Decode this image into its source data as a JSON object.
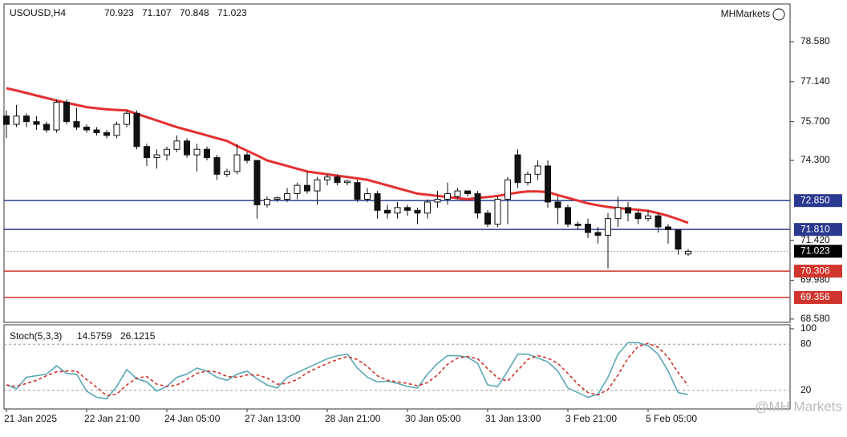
{
  "chart_data": {
    "type": "candlestick",
    "symbol": "USOUSD,H4",
    "quote": [
      70.923,
      71.107,
      70.848,
      71.023
    ],
    "brand": "MHMarkets",
    "watermark": "@MH Markets",
    "categories": [
      "21 Jan 2025",
      null,
      null,
      null,
      null,
      null,
      null,
      null,
      "22 Jan 21:00",
      null,
      null,
      null,
      null,
      null,
      null,
      null,
      "24 Jan 05:00",
      null,
      null,
      null,
      null,
      null,
      null,
      null,
      "27 Jan 13:00",
      null,
      null,
      null,
      null,
      null,
      null,
      null,
      "28 Jan 21:00",
      null,
      null,
      null,
      null,
      null,
      null,
      null,
      "30 Jan 05:00",
      null,
      null,
      null,
      null,
      null,
      null,
      null,
      "31 Jan 13:00",
      null,
      null,
      null,
      null,
      null,
      null,
      null,
      "3 Feb 21:00",
      null,
      null,
      null,
      null,
      null,
      null,
      null,
      "5 Feb 05:00",
      null,
      null,
      null,
      null
    ],
    "open": [
      75.9,
      75.6,
      75.9,
      75.7,
      75.6,
      75.4,
      76.4,
      75.7,
      75.5,
      75.4,
      75.3,
      75.2,
      75.6,
      76.0,
      74.8,
      74.4,
      74.5,
      74.7,
      75.0,
      74.5,
      74.7,
      74.4,
      73.8,
      73.9,
      74.5,
      74.3,
      72.7,
      72.9,
      72.9,
      73.1,
      73.4,
      73.2,
      73.6,
      73.7,
      73.5,
      73.5,
      72.9,
      73.1,
      72.5,
      72.4,
      72.6,
      72.5,
      72.4,
      72.8,
      72.9,
      73.0,
      73.2,
      73.1,
      72.4,
      72.0,
      72.9,
      74.5,
      73.5,
      73.8,
      74.1,
      72.8,
      72.6,
      72.0,
      72.0,
      71.7,
      71.6,
      72.2,
      72.6,
      72.4,
      72.2,
      72.3,
      71.9,
      71.8,
      70.923
    ],
    "high": [
      76.1,
      76.3,
      76.0,
      75.9,
      75.7,
      76.5,
      76.5,
      76.2,
      75.6,
      75.5,
      75.4,
      75.7,
      76.1,
      76.1,
      74.9,
      74.7,
      74.8,
      75.2,
      75.1,
      74.9,
      74.8,
      74.5,
      74.0,
      74.9,
      74.6,
      74.3,
      73.0,
      73.0,
      73.3,
      73.5,
      73.9,
      73.7,
      73.8,
      73.8,
      73.6,
      73.6,
      73.3,
      73.2,
      72.7,
      72.8,
      72.7,
      72.6,
      72.9,
      73.2,
      73.5,
      73.3,
      73.2,
      73.2,
      72.5,
      73.0,
      73.7,
      74.7,
      73.9,
      74.3,
      74.3,
      73.0,
      72.7,
      72.1,
      72.2,
      71.9,
      72.4,
      73.0,
      72.8,
      72.5,
      72.5,
      72.4,
      72.0,
      71.8,
      71.107
    ],
    "low": [
      75.1,
      75.5,
      75.5,
      75.4,
      75.3,
      75.3,
      75.6,
      75.4,
      75.3,
      75.2,
      75.1,
      75.1,
      75.5,
      74.7,
      74.1,
      74.0,
      74.3,
      74.6,
      74.4,
      73.9,
      74.3,
      73.6,
      73.7,
      73.8,
      74.2,
      72.2,
      72.6,
      72.8,
      72.8,
      72.9,
      73.1,
      72.7,
      73.4,
      73.4,
      73.4,
      72.8,
      72.8,
      72.2,
      72.2,
      72.2,
      72.3,
      72.0,
      72.2,
      72.6,
      72.7,
      72.9,
      73.0,
      72.2,
      71.9,
      71.9,
      72.0,
      73.3,
      73.4,
      73.6,
      72.6,
      72.0,
      71.9,
      71.8,
      71.5,
      71.3,
      70.4,
      71.9,
      72.1,
      72.0,
      72.1,
      71.7,
      71.3,
      70.9,
      70.848
    ],
    "close": [
      75.6,
      75.9,
      75.7,
      75.6,
      75.4,
      76.4,
      75.7,
      75.5,
      75.4,
      75.3,
      75.2,
      75.6,
      76.0,
      74.8,
      74.4,
      74.5,
      74.7,
      75.0,
      74.5,
      74.7,
      74.4,
      73.8,
      73.9,
      74.5,
      74.3,
      72.7,
      72.9,
      72.95,
      73.1,
      73.4,
      73.2,
      73.6,
      73.7,
      73.5,
      73.55,
      72.9,
      73.1,
      72.5,
      72.4,
      72.6,
      72.5,
      72.4,
      72.8,
      72.9,
      73.1,
      73.2,
      73.1,
      72.4,
      72.0,
      72.9,
      73.6,
      73.5,
      73.8,
      74.1,
      72.8,
      72.6,
      72.0,
      71.95,
      71.7,
      71.6,
      72.2,
      72.6,
      72.4,
      72.2,
      72.3,
      71.9,
      71.8,
      71.1,
      71.023
    ],
    "bull_color": "#ffffff",
    "bear_color": "#111111",
    "ma": {
      "color": "#e53030",
      "values": [
        76.9,
        76.82,
        76.73,
        76.64,
        76.55,
        76.46,
        76.38,
        76.3,
        76.22,
        76.18,
        76.14,
        76.12,
        76.1,
        75.98,
        75.86,
        75.74,
        75.62,
        75.5,
        75.4,
        75.3,
        75.2,
        75.1,
        75.0,
        74.82,
        74.65,
        74.48,
        74.3,
        74.2,
        74.1,
        74.0,
        73.9,
        73.85,
        73.8,
        73.75,
        73.7,
        73.65,
        73.6,
        73.5,
        73.4,
        73.3,
        73.2,
        73.1,
        73.06,
        73.02,
        72.98,
        72.94,
        72.9,
        72.95,
        72.98,
        73.02,
        73.08,
        73.14,
        73.18,
        73.18,
        73.16,
        73.05,
        72.95,
        72.85,
        72.75,
        72.68,
        72.62,
        72.58,
        72.55,
        72.52,
        72.48,
        72.4,
        72.3,
        72.18,
        72.05
      ]
    },
    "ylim": [
      68.46,
      79.94
    ],
    "yticks": [
      {
        "value": 78.58,
        "label": "78.580"
      },
      {
        "value": 77.14,
        "label": "77.140"
      },
      {
        "value": 75.7,
        "label": "75.700"
      },
      {
        "value": 74.3,
        "label": "74.300"
      },
      {
        "value": 71.42,
        "label": "71.420"
      },
      {
        "value": 69.98,
        "label": "69.980"
      },
      {
        "value": 68.58,
        "label": "68.580"
      }
    ],
    "levels": [
      {
        "value": 72.85,
        "label": "72.850",
        "color": "#2b3990"
      },
      {
        "value": 71.81,
        "label": "71.810",
        "color": "#2b3990"
      },
      {
        "value": 70.306,
        "label": "70.306",
        "color": "#d0342c"
      },
      {
        "value": 69.356,
        "label": "69.356",
        "color": "#d0342c"
      }
    ],
    "current": {
      "value": 71.023,
      "label": "71.023",
      "color": "#000000"
    },
    "stoch": {
      "name": "Stoch(5,3,3)",
      "ylim": [
        0,
        100
      ],
      "yticks": [
        100,
        80,
        20
      ],
      "series": [
        {
          "color": "#5aa8b5",
          "values": [
            27,
            22,
            37,
            39,
            41,
            52,
            42,
            41,
            19,
            11,
            9,
            25,
            47,
            35,
            31,
            19,
            25,
            37,
            41,
            49,
            45,
            37,
            33,
            41,
            45,
            35,
            27,
            23,
            37,
            43,
            49,
            55,
            61,
            65,
            67,
            49,
            37,
            31,
            32,
            29,
            25,
            23,
            41,
            55,
            65,
            65,
            63,
            55,
            27,
            25,
            45,
            67,
            67,
            62,
            57,
            45,
            23,
            17,
            11,
            15,
            37,
            67,
            82,
            82,
            78,
            67,
            45,
            17,
            14.5759
          ]
        },
        {
          "color": "#d0342c",
          "dashed": true,
          "values": [
            27,
            25,
            29,
            33,
            39,
            44,
            45,
            45,
            34,
            24,
            13,
            15,
            27,
            36,
            38,
            28,
            25,
            27,
            34,
            42,
            45,
            44,
            38,
            37,
            40,
            40,
            36,
            28,
            29,
            34,
            43,
            49,
            55,
            60,
            64,
            60,
            51,
            39,
            33,
            31,
            29,
            26,
            30,
            40,
            54,
            62,
            64,
            61,
            48,
            36,
            32,
            46,
            60,
            65,
            62,
            55,
            42,
            28,
            17,
            14,
            21,
            40,
            62,
            77,
            81,
            76,
            63,
            43,
            26.1215
          ]
        }
      ]
    }
  }
}
